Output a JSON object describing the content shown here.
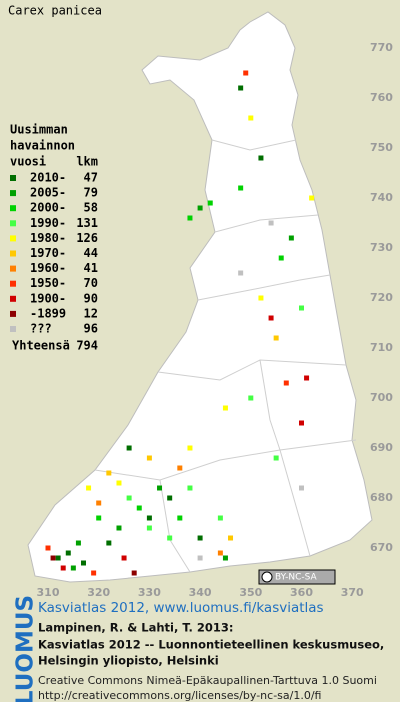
{
  "title": "Carex panicea",
  "legend": {
    "header": [
      "Uusimman",
      "havainnon"
    ],
    "column_year": "vuosi",
    "column_count": "lkm",
    "entries": [
      {
        "label": "2010-",
        "count": 47,
        "color": "#006e00",
        "cells": [
          [
            312,
            668
          ],
          [
            314,
            669
          ],
          [
            322,
            671
          ],
          [
            330,
            676
          ],
          [
            334,
            680
          ],
          [
            340,
            672
          ],
          [
            317,
            667
          ],
          [
            326,
            690
          ],
          [
            352,
            748
          ],
          [
            348,
            762
          ]
        ]
      },
      {
        "label": "2005-",
        "count": 79,
        "color": "#00a000",
        "cells": [
          [
            316,
            671
          ],
          [
            324,
            674
          ],
          [
            332,
            682
          ],
          [
            345,
            668
          ],
          [
            358,
            732
          ],
          [
            340,
            738
          ],
          [
            315,
            666
          ]
        ]
      },
      {
        "label": "2000-",
        "count": 58,
        "color": "#00d200",
        "cells": [
          [
            328,
            678
          ],
          [
            336,
            676
          ],
          [
            320,
            676
          ],
          [
            342,
            739
          ],
          [
            338,
            736
          ],
          [
            356,
            728
          ],
          [
            348,
            742
          ]
        ]
      },
      {
        "label": "1990-",
        "count": 131,
        "color": "#44ff44",
        "cells": [
          [
            330,
            674
          ],
          [
            334,
            672
          ],
          [
            326,
            680
          ],
          [
            338,
            682
          ],
          [
            344,
            676
          ],
          [
            355,
            688
          ],
          [
            350,
            700
          ],
          [
            360,
            718
          ]
        ]
      },
      {
        "label": "1980-",
        "count": 126,
        "color": "#ffff00",
        "cells": [
          [
            318,
            682
          ],
          [
            324,
            683
          ],
          [
            345,
            698
          ],
          [
            352,
            720
          ],
          [
            338,
            690
          ],
          [
            362,
            740
          ],
          [
            350,
            756
          ]
        ]
      },
      {
        "label": "1970-",
        "count": 44,
        "color": "#ffc800",
        "cells": [
          [
            322,
            685
          ],
          [
            330,
            688
          ],
          [
            355,
            712
          ],
          [
            346,
            672
          ]
        ]
      },
      {
        "label": "1960-",
        "count": 41,
        "color": "#ff8000",
        "cells": [
          [
            320,
            679
          ],
          [
            336,
            686
          ],
          [
            344,
            669
          ]
        ]
      },
      {
        "label": "1950-",
        "count": 70,
        "color": "#ff3000",
        "cells": [
          [
            310,
            670
          ],
          [
            319,
            665
          ],
          [
            357,
            703
          ],
          [
            349,
            765
          ]
        ]
      },
      {
        "label": "1900-",
        "count": 90,
        "color": "#d00000",
        "cells": [
          [
            313,
            666
          ],
          [
            325,
            668
          ],
          [
            354,
            716
          ],
          [
            361,
            704
          ],
          [
            360,
            695
          ]
        ]
      },
      {
        "label": "-1899",
        "count": 12,
        "color": "#8c0000",
        "cells": [
          [
            311,
            668
          ],
          [
            327,
            665
          ]
        ]
      },
      {
        "label": "???",
        "count": 96,
        "color": "#c0c0c0",
        "cells": [
          [
            348,
            725
          ],
          [
            354,
            735
          ],
          [
            360,
            682
          ],
          [
            340,
            668
          ]
        ]
      }
    ],
    "total_label": "Yhteensä",
    "total_count": 794
  },
  "grid": {
    "x_ticks": [
      310,
      320,
      330,
      340,
      350,
      360,
      370
    ],
    "y_ticks": [
      670,
      680,
      690,
      700,
      710,
      720,
      730,
      740,
      750,
      760,
      770
    ]
  },
  "cc_badge": "BY-NC-SA",
  "logo": "LUOMUS",
  "footer": {
    "link": "Kasviatlas 2012, www.luomus.fi/kasviatlas",
    "citation": [
      "Lampinen, R. & Lahti, T. 2013:",
      "Kasviatlas 2012 -- Luonnontieteellinen keskusmuseo,",
      "Helsingin yliopisto, Helsinki"
    ],
    "license": [
      "Creative Commons Nimeä-Epäkaupallinen-Tarttuva 1.0 Suomi",
      "http://creativecommons.org/licenses/by-nc-sa/1.0/fi"
    ]
  }
}
